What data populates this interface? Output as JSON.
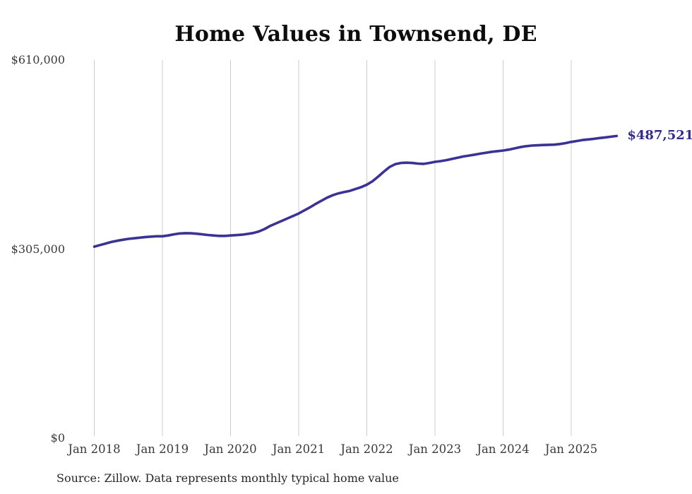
{
  "chart_data": {
    "type": "line",
    "title": "Home Values in Townsend, DE",
    "source_note": "Source: Zillow. Data represents monthly typical home value",
    "end_label": "$487,521",
    "end_value": 487521,
    "ylim": [
      0,
      610000
    ],
    "grid": "vertical-only",
    "legend": "none",
    "line_color": "#3b3295",
    "end_label_color": "#322b8d",
    "grid_color": "#cccccc",
    "tick_text_color": "#3a3a3a",
    "y_ticks": [
      {
        "label": "$610,000",
        "value": 610000
      },
      {
        "label": "$305,000",
        "value": 305000
      },
      {
        "label": "$0",
        "value": 0
      }
    ],
    "x_ticks": [
      {
        "label": "Jan 2018",
        "date": "2018-01"
      },
      {
        "label": "Jan 2019",
        "date": "2019-01"
      },
      {
        "label": "Jan 2020",
        "date": "2020-01"
      },
      {
        "label": "Jan 2021",
        "date": "2021-01"
      },
      {
        "label": "Jan 2022",
        "date": "2022-01"
      },
      {
        "label": "Jan 2023",
        "date": "2023-01"
      },
      {
        "label": "Jan 2024",
        "date": "2024-01"
      },
      {
        "label": "Jan 2025",
        "date": "2025-01"
      }
    ],
    "series": [
      {
        "name": "Typical home value",
        "x_dates": [
          "2018-01",
          "2018-02",
          "2018-03",
          "2018-04",
          "2018-05",
          "2018-06",
          "2018-07",
          "2018-08",
          "2018-09",
          "2018-10",
          "2018-11",
          "2018-12",
          "2019-01",
          "2019-02",
          "2019-03",
          "2019-04",
          "2019-05",
          "2019-06",
          "2019-07",
          "2019-08",
          "2019-09",
          "2019-10",
          "2019-11",
          "2019-12",
          "2020-01",
          "2020-02",
          "2020-03",
          "2020-04",
          "2020-05",
          "2020-06",
          "2020-07",
          "2020-08",
          "2020-09",
          "2020-10",
          "2020-11",
          "2020-12",
          "2021-01",
          "2021-02",
          "2021-03",
          "2021-04",
          "2021-05",
          "2021-06",
          "2021-07",
          "2021-08",
          "2021-09",
          "2021-10",
          "2021-11",
          "2021-12",
          "2022-01",
          "2022-02",
          "2022-03",
          "2022-04",
          "2022-05",
          "2022-06",
          "2022-07",
          "2022-08",
          "2022-09",
          "2022-10",
          "2022-11",
          "2022-12",
          "2023-01",
          "2023-02",
          "2023-03",
          "2023-04",
          "2023-05",
          "2023-06",
          "2023-07",
          "2023-08",
          "2023-09",
          "2023-10",
          "2023-11",
          "2023-12",
          "2024-01",
          "2024-02",
          "2024-03",
          "2024-04",
          "2024-05",
          "2024-06",
          "2024-07",
          "2024-08",
          "2024-09",
          "2024-10",
          "2024-11",
          "2024-12",
          "2025-01",
          "2025-02",
          "2025-03",
          "2025-04",
          "2025-05",
          "2025-06",
          "2025-07",
          "2025-08",
          "2025-09"
        ],
        "values": [
          309000,
          311500,
          314000,
          316500,
          318500,
          320000,
          321500,
          322500,
          323500,
          324500,
          325200,
          325800,
          325800,
          327000,
          328800,
          330200,
          330800,
          330500,
          329800,
          328800,
          327800,
          327000,
          326300,
          326300,
          327000,
          327600,
          328300,
          329500,
          331000,
          333500,
          337500,
          342500,
          346500,
          350500,
          354500,
          358500,
          362500,
          367500,
          372500,
          378000,
          383000,
          388000,
          392000,
          395000,
          397000,
          399000,
          402000,
          405000,
          409000,
          414500,
          422000,
          430000,
          437500,
          442000,
          444000,
          444500,
          444000,
          443000,
          442500,
          444000,
          445800,
          447000,
          448500,
          450500,
          452500,
          454500,
          456000,
          457500,
          459000,
          460500,
          462000,
          463000,
          464000,
          465500,
          467500,
          469500,
          471000,
          472000,
          472500,
          473000,
          473300,
          473500,
          474500,
          476000,
          478000,
          479500,
          481000,
          482000,
          483000,
          484200,
          485300,
          486400,
          487521
        ]
      }
    ]
  }
}
